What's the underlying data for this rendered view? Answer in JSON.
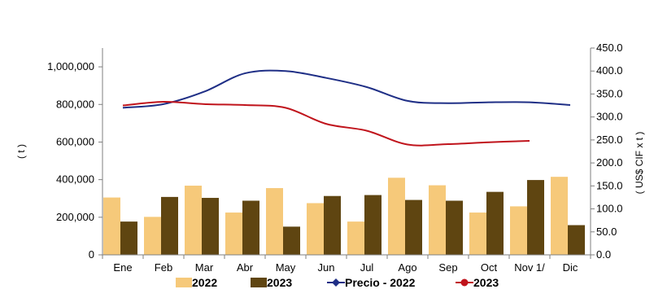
{
  "chart_data": {
    "type": "bar",
    "categories": [
      "Ene",
      "Feb",
      "Mar",
      "Abr",
      "May",
      "Jun",
      "Jul",
      "Ago",
      "Sep",
      "Oct",
      "Nov 1/",
      "Dic"
    ],
    "ylabel": "( t )",
    "y2label": "( US$ CIF x t )",
    "ylim": [
      0,
      1100000
    ],
    "y2lim": [
      0,
      450
    ],
    "yticks": [
      "0",
      "200,000",
      "400,000",
      "600,000",
      "800,000",
      "1,000,000"
    ],
    "y2ticks": [
      "0.0",
      "50.0",
      "100.0",
      "150.0",
      "200.0",
      "250.0",
      "300.0",
      "350.0",
      "400.0",
      "450.0"
    ],
    "grid": false,
    "legend_position": "bottom",
    "bar_series": [
      {
        "name": "2022",
        "color": "#f6c97a",
        "values": [
          305000,
          202000,
          368000,
          225000,
          355000,
          275000,
          177000,
          410000,
          370000,
          225000,
          258000,
          415000
        ]
      },
      {
        "name": "2023",
        "color": "#5f4511",
        "values": [
          177000,
          308000,
          303000,
          288000,
          150000,
          313000,
          318000,
          292000,
          288000,
          335000,
          398000,
          158000
        ]
      }
    ],
    "line_series": [
      {
        "name": "Precio - 2022",
        "color": "#1f2f86",
        "marker": "diamond",
        "values": [
          320,
          328,
          355,
          395,
          400,
          385,
          365,
          335,
          330,
          332,
          332,
          326
        ]
      },
      {
        "name": "2023",
        "color": "#c0141c",
        "marker": "circle",
        "values": [
          325,
          333,
          328,
          326,
          320,
          285,
          270,
          240,
          241,
          245,
          248
        ]
      }
    ]
  }
}
